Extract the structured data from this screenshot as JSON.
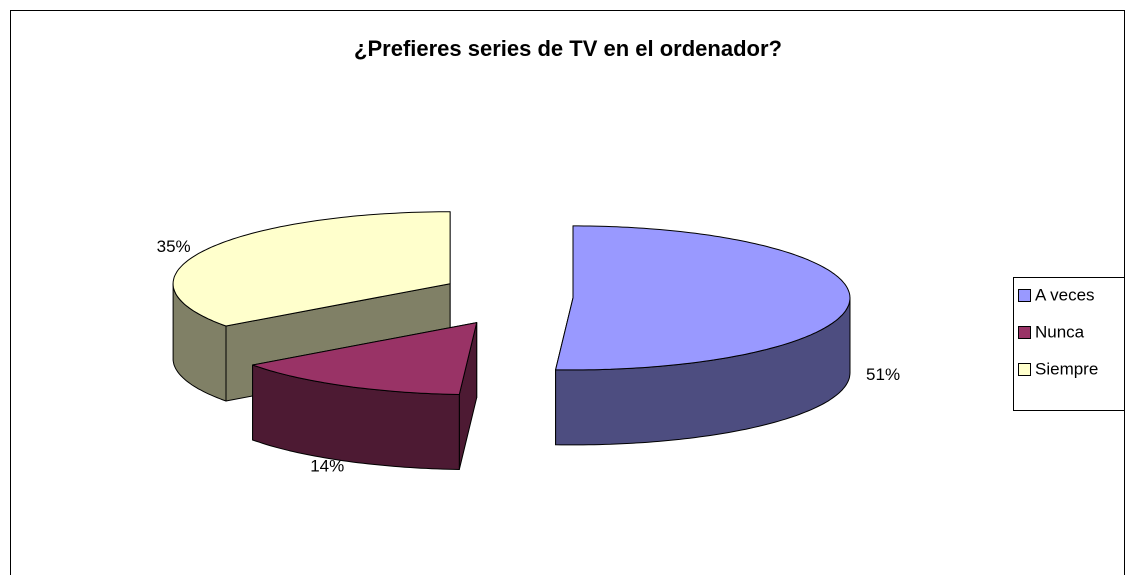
{
  "chart_data": {
    "type": "pie3d",
    "title": "¿Prefieres series de TV en el ordenador?",
    "categories": [
      "A veces",
      "Nunca",
      "Siempre"
    ],
    "values": [
      51,
      14,
      35
    ],
    "value_labels": [
      "51%",
      "14%",
      "35%"
    ],
    "colors": [
      "#9999ff",
      "#993366",
      "#ffffcc"
    ],
    "legend": "right"
  }
}
